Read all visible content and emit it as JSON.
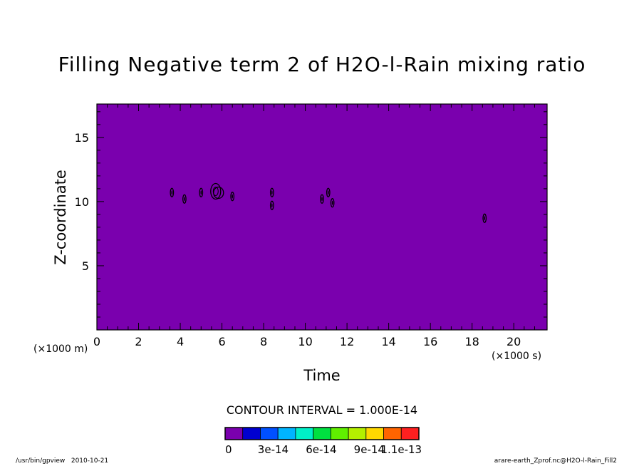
{
  "footer": {
    "program": "/usr/bin/gpview",
    "date": "2010-10-21",
    "source": "arare-earth_Zprof.nc@H2O-l-Rain_Fill2"
  },
  "chart_data": {
    "type": "heatmap",
    "title": "Filling Negative term 2 of H2O-l-Rain mixing ratio",
    "xlabel": "Time",
    "ylabel": "Z-coordinate",
    "x_unit": "(×1000 s)",
    "y_unit": "(×1000 m)",
    "xlim": [
      0,
      21.6
    ],
    "ylim": [
      0,
      17.6
    ],
    "xticks": [
      0,
      2,
      4,
      6,
      8,
      10,
      12,
      14,
      16,
      18,
      20
    ],
    "yticks": [
      5,
      10,
      15
    ],
    "fill_color": "#7a00ae",
    "contour_interval_label": "CONTOUR INTERVAL = 1.000E-14",
    "colorbar": {
      "colors": [
        "#7a00ae",
        "#0000d0",
        "#0050ff",
        "#00b4ff",
        "#00f0c8",
        "#00e040",
        "#60f000",
        "#b4f000",
        "#ffd800",
        "#ff6400",
        "#ff2020"
      ],
      "tick_labels": [
        "0",
        "3e-14",
        "6e-14",
        "9e-14",
        "1.1e-13"
      ],
      "tick_values": [
        0,
        3e-14,
        6e-14,
        9e-14,
        1.1e-13
      ]
    },
    "features": [
      {
        "x": 3.6,
        "y": 10.7
      },
      {
        "x": 4.2,
        "y": 10.2
      },
      {
        "x": 5.0,
        "y": 10.7
      },
      {
        "x": 5.7,
        "y": 10.8
      },
      {
        "x": 6.5,
        "y": 10.4
      },
      {
        "x": 8.4,
        "y": 10.7
      },
      {
        "x": 8.4,
        "y": 9.7
      },
      {
        "x": 10.8,
        "y": 10.2
      },
      {
        "x": 11.1,
        "y": 10.7
      },
      {
        "x": 11.3,
        "y": 9.9
      },
      {
        "x": 18.6,
        "y": 8.7
      }
    ]
  }
}
